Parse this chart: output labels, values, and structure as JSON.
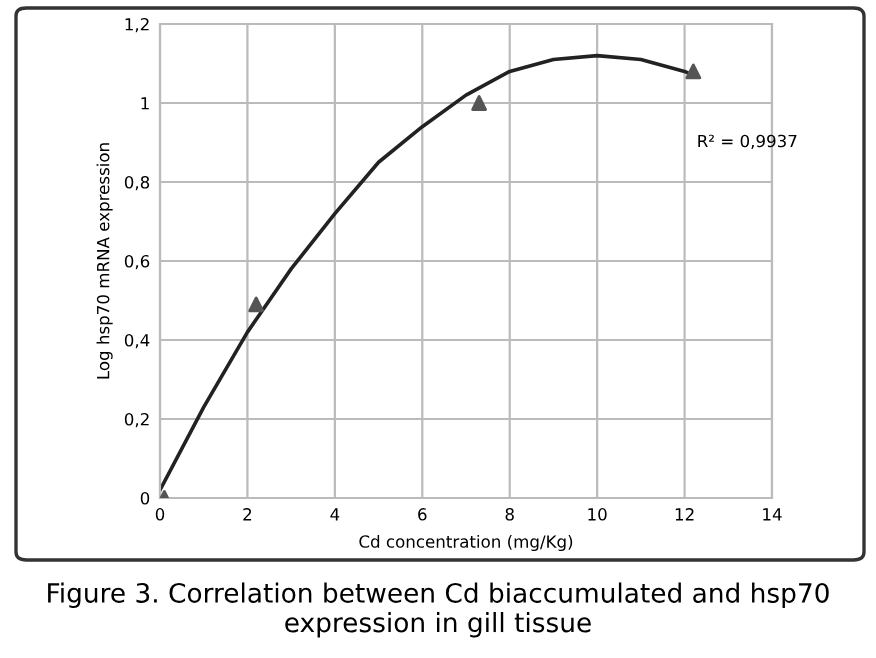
{
  "chart_data": {
    "type": "scatter",
    "xlabel": "Cd concentration (mg/Kg)",
    "ylabel": "Log hsp70 mRNA expression",
    "xlim": [
      0,
      14
    ],
    "xticks": [
      0,
      2,
      4,
      6,
      8,
      10,
      12,
      14
    ],
    "ylim": [
      0,
      1.2
    ],
    "yticks": [
      0,
      {
        "value": 0.2,
        "label": "0,2"
      },
      {
        "value": 0.4,
        "label": "0,4"
      },
      {
        "value": 0.6,
        "label": "0,6"
      },
      {
        "value": 0.8,
        "label": "0,8"
      },
      1,
      {
        "value": 1.2,
        "label": "1,2"
      }
    ],
    "grid": true,
    "legend": false,
    "series": [
      {
        "color": "#555555",
        "marker": "triangle",
        "x": [
          0.1,
          2.2,
          7.3,
          12.2
        ],
        "values": [
          0,
          0.49,
          1.0,
          1.08
        ]
      },
      {
        "type": "line",
        "color": "#222222",
        "marker": "none",
        "line_style": "solid",
        "x": [
          0,
          1,
          2,
          3,
          4,
          5,
          6,
          7,
          8,
          9,
          10,
          11,
          12,
          12.2
        ],
        "values": [
          0.02,
          0.23,
          0.42,
          0.58,
          0.72,
          0.85,
          0.94,
          1.02,
          1.08,
          1.11,
          1.12,
          1.11,
          1.08,
          1.07
        ]
      }
    ],
    "annotations": [
      "R² = 0,9937",
      "Figure 3. Correlation between Cd biaccumulated and hsp70 expression in gill tissue"
    ]
  }
}
